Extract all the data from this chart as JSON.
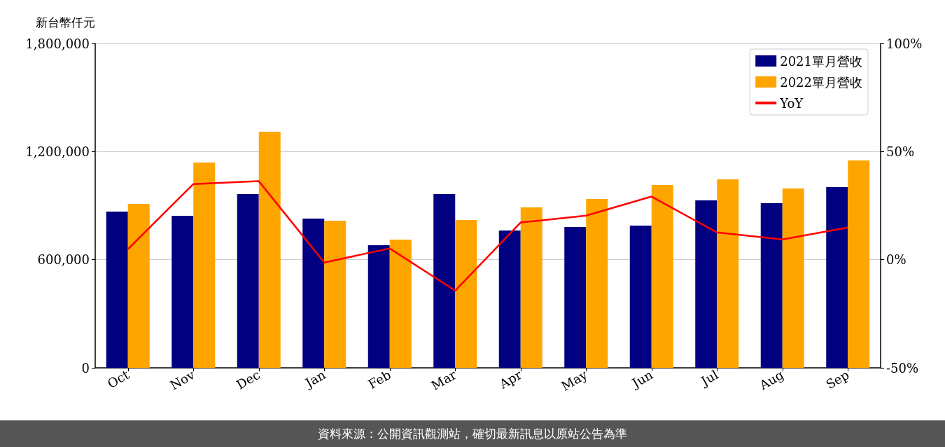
{
  "chart_data": {
    "type": "bar",
    "ylabel": "新台幣仟元",
    "categories": [
      "Oct",
      "Nov",
      "Dec",
      "Jan",
      "Feb",
      "Mar",
      "Apr",
      "May",
      "Jun",
      "Jul",
      "Aug",
      "Sep"
    ],
    "series": [
      {
        "name": "2021單月營收",
        "color": "#000080",
        "values": [
          867000,
          844000,
          964000,
          828000,
          680000,
          964000,
          762000,
          781000,
          789000,
          929000,
          914000,
          1003000
        ]
      },
      {
        "name": "2022單月營收",
        "color": "#ffa500",
        "values": [
          910000,
          1139000,
          1310000,
          816000,
          711000,
          820000,
          890000,
          937000,
          1015000,
          1046000,
          995000,
          1151000
        ]
      },
      {
        "name": "YoY",
        "type": "line",
        "axis": "y2",
        "color": "#ff0000",
        "values": [
          4.9,
          35,
          36.3,
          -1.3,
          5.2,
          -14.3,
          17.2,
          20.4,
          29.2,
          12.6,
          9.4,
          14.9
        ]
      }
    ],
    "ylim": [
      0,
      1800000
    ],
    "yticks": [
      0,
      {
        "value": 600000,
        "label": "600,000"
      },
      {
        "value": 1200000,
        "label": "1,200,000"
      },
      {
        "value": 1800000,
        "label": "1,800,000"
      }
    ],
    "y2lim": [
      -50,
      100
    ],
    "y2ticks": [
      {
        "value": -50,
        "label": "-50%"
      },
      {
        "value": 0,
        "label": "0%"
      },
      {
        "value": 50,
        "label": "50%"
      },
      {
        "value": 100,
        "label": "100%"
      }
    ],
    "grid": "y",
    "legend": "top right",
    "marker": "none",
    "line_style": "solid",
    "annotations": [
      "資料來源：公開資訊觀測站，確切最新訊息以原站公告為準"
    ]
  }
}
